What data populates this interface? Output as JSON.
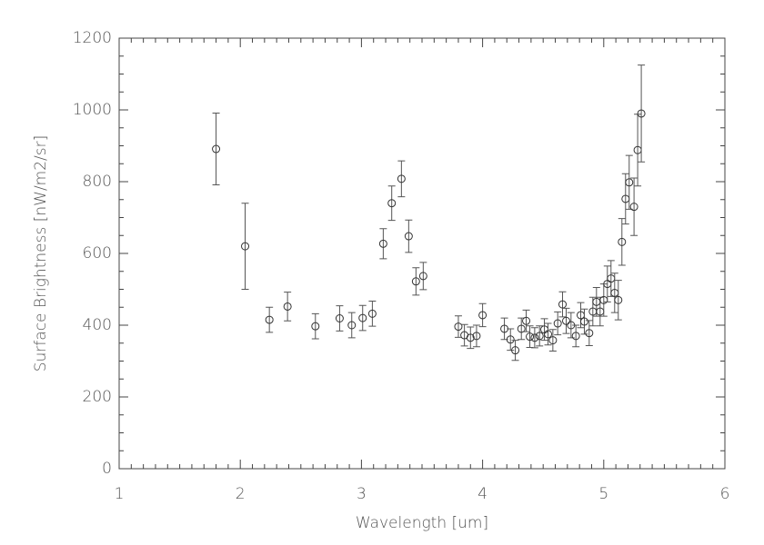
{
  "chart_data": {
    "type": "scatter",
    "xlabel": "Wavelength [um]",
    "ylabel": "Surface Brightness [nW/m2/sr]",
    "x": [
      1.8,
      2.04,
      2.24,
      2.39,
      2.62,
      2.82,
      2.92,
      3.01,
      3.09,
      3.18,
      3.25,
      3.33,
      3.39,
      3.45,
      3.51,
      3.8,
      3.85,
      3.9,
      3.95,
      4.0,
      4.18,
      4.23,
      4.27,
      4.32,
      4.36,
      4.39,
      4.43,
      4.47,
      4.51,
      4.54,
      4.58,
      4.62,
      4.66,
      4.69,
      4.73,
      4.77,
      4.81,
      4.84,
      4.88,
      4.91,
      4.94,
      4.97,
      5.0,
      5.03,
      5.06,
      5.09,
      5.12,
      5.15,
      5.18,
      5.21,
      5.25,
      5.28,
      5.31
    ],
    "values": [
      891,
      620,
      415,
      452,
      397,
      419,
      400,
      420,
      432,
      627,
      740,
      808,
      648,
      522,
      537,
      396,
      372,
      365,
      370,
      428,
      390,
      360,
      330,
      390,
      412,
      368,
      365,
      370,
      388,
      375,
      358,
      405,
      458,
      412,
      400,
      370,
      428,
      410,
      378,
      438,
      465,
      438,
      470,
      515,
      530,
      490,
      470,
      632,
      752,
      798,
      730,
      888,
      990
    ],
    "errors": [
      100,
      120,
      35,
      40,
      35,
      35,
      35,
      35,
      35,
      42,
      48,
      50,
      45,
      38,
      38,
      30,
      30,
      30,
      30,
      32,
      30,
      30,
      28,
      30,
      30,
      30,
      28,
      28,
      30,
      30,
      30,
      32,
      35,
      35,
      35,
      30,
      35,
      35,
      35,
      40,
      40,
      40,
      45,
      50,
      50,
      55,
      55,
      65,
      70,
      75,
      80,
      100,
      135
    ],
    "xlim": [
      1,
      6
    ],
    "xticks": [
      1,
      2,
      3,
      4,
      5,
      6
    ],
    "ylim": [
      0,
      1200
    ],
    "yticks": [
      0,
      200,
      400,
      600,
      800,
      1000,
      1200
    ],
    "color": "#333333"
  }
}
